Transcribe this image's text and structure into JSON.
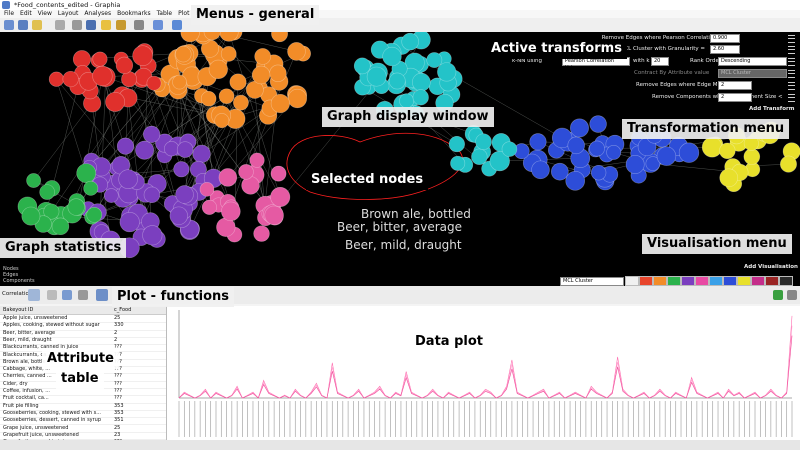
{
  "window": {
    "title": "*Food_contents_edited - Graphia"
  },
  "menu": [
    "File",
    "Edit",
    "View",
    "Layout",
    "Analyses",
    "Bookmarks",
    "Table",
    "Plot",
    "Help"
  ],
  "callouts": {
    "menus": "Menus - general",
    "active": "Active transforms",
    "graph": "Graph display window",
    "transform": "Transformation menu",
    "selected": "Selected nodes",
    "stats": "Graph statistics",
    "vis": "Visualisation menu",
    "plotfn": "Plot - functions",
    "attr1": "Attribute",
    "attr2": "table",
    "dataplot": "Data plot"
  },
  "transforms": [
    {
      "label": "Remove Edges where Pearson Correlation Value <",
      "value": "0.900"
    },
    {
      "label": "MCL Cluster with Granularity =",
      "value": "2.60"
    },
    {
      "label": "k-NN using",
      "value": "Pearson Correlation Value",
      "extra": "with k =",
      "kval": "20",
      "rank": "Rank Order =",
      "order": "Descending"
    },
    {
      "label": "Contract By Attribute value",
      "value": "MCL Cluster"
    },
    {
      "label": "Remove Edges where Edge Multiplicity <",
      "value": "2"
    },
    {
      "label": "Remove Components where Component Size <",
      "value": "2"
    }
  ],
  "add_transform": "Add Transform",
  "add_visualisation": "Add Visualisation",
  "vis_select": "MCL Cluster",
  "node_labels": [
    "Brown ale, bottled",
    "Beer, bitter, average",
    "Beer, mild, draught"
  ],
  "stats": [
    "Nodes",
    "Edges",
    "Components"
  ],
  "correlation_label": "Correlation",
  "table": {
    "headers": [
      "Bakeyout ID",
      "c_Food"
    ],
    "rows": [
      [
        "Apple juice, unsweetened",
        "25"
      ],
      [
        "Apples, cooking, stewed without sugar",
        "330"
      ],
      [
        "Beer, bitter, average",
        "2"
      ],
      [
        "Beer, mild, draught",
        "2"
      ],
      [
        "Blackcurrants, canned in juice",
        "???"
      ],
      [
        "Blackcurrants, ca...",
        "???"
      ],
      [
        "Brown ale, bottle",
        "???"
      ],
      [
        "Cabbage, white, ...",
        "???"
      ],
      [
        "Cherries, canned ...",
        "???"
      ],
      [
        "Cider, dry",
        "???"
      ],
      [
        "Coffee, infusion, ...",
        "???"
      ],
      [
        "Fruit cocktail, ca...",
        "???"
      ],
      [
        "Fruit pie filling",
        "353"
      ],
      [
        "Gooseberries, cooking, stewed with s...",
        "353"
      ],
      [
        "Gooseberries, dessert, canned in syrup",
        "351"
      ],
      [
        "Grape juice, unsweetened",
        "25"
      ],
      [
        "Grapefruit juice, unsweetened",
        "23"
      ],
      [
        "Grapefruit, canned in juice",
        "???"
      ]
    ]
  },
  "colors": {
    "accent": "#ff69b4",
    "graph_bg": "#000000"
  },
  "swatches": [
    "#f0f0f0",
    "#e8452c",
    "#f28c28",
    "#2bb24c",
    "#7b3fbf",
    "#e84aa3",
    "#3aa0e8",
    "#2d4dd8",
    "#e8e02b",
    "#c42d8a",
    "#9a2424",
    "#2a2a2a"
  ],
  "chart_data": {
    "type": "line",
    "series": [
      {
        "values": [
          0,
          2,
          1,
          0,
          1,
          3,
          0,
          2,
          1,
          0,
          1,
          4,
          0,
          1,
          2,
          0,
          6,
          2,
          1,
          0,
          1,
          0,
          3,
          1,
          0,
          2,
          5,
          1,
          0,
          12,
          2,
          1,
          0,
          1,
          3,
          0,
          1,
          2,
          4,
          1,
          0,
          2,
          1,
          9,
          2,
          1,
          0,
          1,
          3,
          1,
          0,
          2,
          1,
          0,
          1,
          2,
          0,
          1,
          3,
          2,
          0,
          1,
          4,
          13,
          2,
          1,
          0,
          1,
          2,
          3,
          0,
          1,
          2,
          0,
          1,
          2,
          1,
          0,
          4,
          2,
          1,
          0,
          2,
          14,
          3,
          1,
          0,
          1,
          2,
          0,
          1,
          3,
          1,
          0,
          2,
          1,
          0,
          7,
          2,
          1,
          0,
          1,
          2,
          0,
          3,
          1,
          2,
          0,
          1,
          2,
          0,
          1,
          3,
          1,
          0,
          2,
          28
        ]
      }
    ],
    "ylim": [
      0,
      30
    ],
    "grid": false
  }
}
